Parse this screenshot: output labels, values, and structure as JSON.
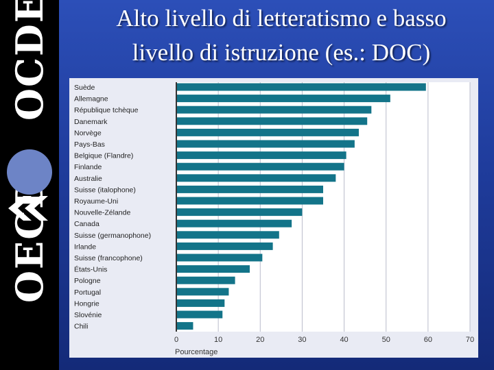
{
  "slide": {
    "title_line1": "Alto livello di letteratismo e basso",
    "title_line2": "livello di istruzione (es.: DOC)"
  },
  "logo": {
    "text_before": "OECD",
    "text_after": "OCDE"
  },
  "colors": {
    "bar": "#137489",
    "background": "#1f3c9c",
    "panel": "#e9ebf4",
    "logo_disc": "#6d84c6"
  },
  "chart_data": {
    "type": "bar",
    "orientation": "horizontal",
    "categories": [
      "Suède",
      "Allemagne",
      "République tchèque",
      "Danemark",
      "Norvège",
      "Pays-Bas",
      "Belgique (Flandre)",
      "Finlande",
      "Australie",
      "Suisse (italophone)",
      "Royaume-Uni",
      "Nouvelle-Zélande",
      "Canada",
      "Suisse (germanophone)",
      "Irlande",
      "Suisse (francophone)",
      "États-Unis",
      "Pologne",
      "Portugal",
      "Hongrie",
      "Slovénie",
      "Chili"
    ],
    "values": [
      59.5,
      51,
      46.5,
      45.5,
      43.5,
      42.5,
      40.5,
      40,
      38,
      35,
      35,
      30,
      27.5,
      24.5,
      23,
      20.5,
      17.5,
      14,
      12.5,
      11.5,
      11,
      4
    ],
    "xlabel": "Pourcentage",
    "ylabel": "",
    "xlim": [
      0,
      70
    ],
    "xticks": [
      0,
      10,
      20,
      30,
      40,
      50,
      60,
      70
    ],
    "grid": true
  }
}
